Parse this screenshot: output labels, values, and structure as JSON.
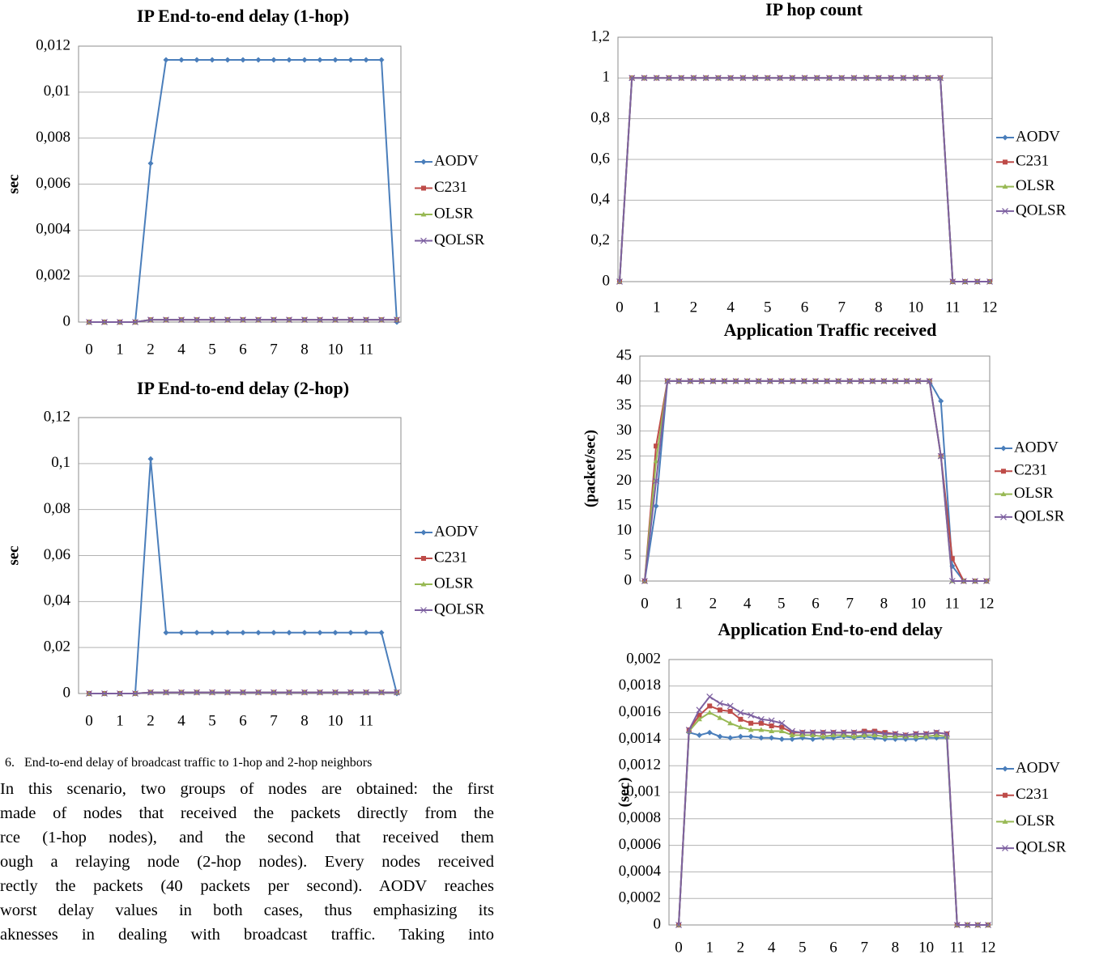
{
  "chart_data": [
    {
      "type": "line",
      "title": "IP End-to-end delay (1-hop)",
      "ylabel": "sec",
      "categories": [
        "0",
        null,
        "1",
        null,
        "2",
        null,
        "4",
        null,
        "5",
        null,
        "6",
        null,
        "7",
        null,
        "8",
        null,
        "10",
        null,
        "11",
        null,
        null
      ],
      "ylim": [
        0,
        0.012
      ],
      "yticks": [
        0,
        {
          "value": 0.002,
          "label": "0,002"
        },
        {
          "value": 0.004,
          "label": "0,004"
        },
        {
          "value": 0.006,
          "label": "0,006"
        },
        {
          "value": 0.008,
          "label": "0,008"
        },
        {
          "value": 0.01,
          "label": "0,01"
        },
        {
          "value": 0.012,
          "label": "0,012"
        }
      ],
      "grid": true,
      "legend": "right",
      "series": [
        {
          "name": "AODV",
          "color": "#4a7ebb",
          "values": [
            0,
            0,
            0,
            0,
            0.0069,
            0.0114,
            0.0114,
            0.0114,
            0.0114,
            0.0114,
            0.0114,
            0.0114,
            0.0114,
            0.0114,
            0.0114,
            0.0114,
            0.0114,
            0.0114,
            0.0114,
            0.0114,
            0
          ]
        },
        {
          "name": "C231",
          "color": "#be4b48",
          "values": [
            0,
            0,
            0,
            0,
            0.0001,
            0.0001,
            0.0001,
            0.0001,
            0.0001,
            0.0001,
            0.0001,
            0.0001,
            0.0001,
            0.0001,
            0.0001,
            0.0001,
            0.0001,
            0.0001,
            0.0001,
            0.0001,
            0.0001
          ]
        },
        {
          "name": "OLSR",
          "color": "#98b954",
          "values": [
            0,
            0,
            0,
            0,
            0.0001,
            0.0001,
            0.0001,
            0.0001,
            0.0001,
            0.0001,
            0.0001,
            0.0001,
            0.0001,
            0.0001,
            0.0001,
            0.0001,
            0.0001,
            0.0001,
            0.0001,
            0.0001,
            0.0001
          ]
        },
        {
          "name": "QOLSR",
          "color": "#7d60a0",
          "values": [
            0,
            0,
            0,
            0,
            0.0001,
            0.0001,
            0.0001,
            0.0001,
            0.0001,
            0.0001,
            0.0001,
            0.0001,
            0.0001,
            0.0001,
            0.0001,
            0.0001,
            0.0001,
            0.0001,
            0.0001,
            0.0001,
            0.0001
          ]
        }
      ]
    },
    {
      "type": "line",
      "title": "IP End-to-end delay (2-hop)",
      "ylabel": "sec",
      "categories": [
        "0",
        null,
        "1",
        null,
        "2",
        null,
        "4",
        null,
        "5",
        null,
        "6",
        null,
        "7",
        null,
        "8",
        null,
        "10",
        null,
        "11",
        null,
        null
      ],
      "ylim": [
        0,
        0.12
      ],
      "yticks": [
        0,
        {
          "value": 0.02,
          "label": "0,02"
        },
        {
          "value": 0.04,
          "label": "0,04"
        },
        {
          "value": 0.06,
          "label": "0,06"
        },
        {
          "value": 0.08,
          "label": "0,08"
        },
        {
          "value": 0.1,
          "label": "0,1"
        },
        {
          "value": 0.12,
          "label": "0,12"
        }
      ],
      "grid": true,
      "legend": "right",
      "series": [
        {
          "name": "AODV",
          "color": "#4a7ebb",
          "values": [
            0,
            0,
            0,
            0,
            0.102,
            0.0265,
            0.0265,
            0.0265,
            0.0265,
            0.0265,
            0.0265,
            0.0265,
            0.0265,
            0.0265,
            0.0265,
            0.0265,
            0.0265,
            0.0265,
            0.0265,
            0.0265,
            0
          ]
        },
        {
          "name": "C231",
          "color": "#be4b48",
          "values": [
            0,
            0,
            0,
            0,
            0.0005,
            0.0005,
            0.0005,
            0.0005,
            0.0005,
            0.0005,
            0.0005,
            0.0005,
            0.0005,
            0.0005,
            0.0005,
            0.0005,
            0.0005,
            0.0005,
            0.0005,
            0.0005,
            0.0005
          ]
        },
        {
          "name": "OLSR",
          "color": "#98b954",
          "values": [
            0,
            0,
            0,
            0,
            0.0005,
            0.0005,
            0.0005,
            0.0005,
            0.0005,
            0.0005,
            0.0005,
            0.0005,
            0.0005,
            0.0005,
            0.0005,
            0.0005,
            0.0005,
            0.0005,
            0.0005,
            0.0005,
            0.0005
          ]
        },
        {
          "name": "QOLSR",
          "color": "#7d60a0",
          "values": [
            0,
            0,
            0,
            0,
            0.0005,
            0.0005,
            0.0005,
            0.0005,
            0.0005,
            0.0005,
            0.0005,
            0.0005,
            0.0005,
            0.0005,
            0.0005,
            0.0005,
            0.0005,
            0.0005,
            0.0005,
            0.0005,
            0.0005
          ]
        }
      ]
    },
    {
      "type": "line",
      "title": "IP hop count",
      "categories": [
        "0",
        null,
        null,
        "1",
        null,
        null,
        "2",
        null,
        null,
        "4",
        null,
        null,
        "5",
        null,
        null,
        "6",
        null,
        null,
        "7",
        null,
        null,
        "8",
        null,
        null,
        "10",
        null,
        null,
        "11",
        null,
        null,
        "12"
      ],
      "ylim": [
        0,
        1.2
      ],
      "yticks": [
        0,
        {
          "value": 0.2,
          "label": "0,2"
        },
        {
          "value": 0.4,
          "label": "0,4"
        },
        {
          "value": 0.6,
          "label": "0,6"
        },
        {
          "value": 0.8,
          "label": "0,8"
        },
        1,
        {
          "value": 1.2,
          "label": "1,2"
        }
      ],
      "grid": true,
      "legend": "right",
      "series": [
        {
          "name": "AODV",
          "color": "#4a7ebb",
          "values": [
            0,
            1,
            1,
            1,
            1,
            1,
            1,
            1,
            1,
            1,
            1,
            1,
            1,
            1,
            1,
            1,
            1,
            1,
            1,
            1,
            1,
            1,
            1,
            1,
            1,
            1,
            1,
            0,
            0,
            0,
            0
          ]
        },
        {
          "name": "C231",
          "color": "#be4b48",
          "values": [
            0,
            1,
            1,
            1,
            1,
            1,
            1,
            1,
            1,
            1,
            1,
            1,
            1,
            1,
            1,
            1,
            1,
            1,
            1,
            1,
            1,
            1,
            1,
            1,
            1,
            1,
            1,
            0,
            0,
            0,
            0
          ]
        },
        {
          "name": "OLSR",
          "color": "#98b954",
          "values": [
            0,
            1,
            1,
            1,
            1,
            1,
            1,
            1,
            1,
            1,
            1,
            1,
            1,
            1,
            1,
            1,
            1,
            1,
            1,
            1,
            1,
            1,
            1,
            1,
            1,
            1,
            1,
            0,
            0,
            0,
            0
          ]
        },
        {
          "name": "QOLSR",
          "color": "#7d60a0",
          "values": [
            0,
            1,
            1,
            1,
            1,
            1,
            1,
            1,
            1,
            1,
            1,
            1,
            1,
            1,
            1,
            1,
            1,
            1,
            1,
            1,
            1,
            1,
            1,
            1,
            1,
            1,
            1,
            0,
            0,
            0,
            0
          ]
        }
      ]
    },
    {
      "type": "line",
      "title": "Application Traffic received",
      "ylabel": "(packet/sec)",
      "categories": [
        "0",
        null,
        null,
        "1",
        null,
        null,
        "2",
        null,
        null,
        "4",
        null,
        null,
        "5",
        null,
        null,
        "6",
        null,
        null,
        "7",
        null,
        null,
        "8",
        null,
        null,
        "10",
        null,
        null,
        "11",
        null,
        null,
        "12"
      ],
      "ylim": [
        0,
        45
      ],
      "yticks": [
        0,
        5,
        10,
        15,
        20,
        25,
        30,
        35,
        40,
        45
      ],
      "grid": true,
      "legend": "right",
      "series": [
        {
          "name": "AODV",
          "color": "#4a7ebb",
          "values": [
            0,
            15,
            40,
            40,
            40,
            40,
            40,
            40,
            40,
            40,
            40,
            40,
            40,
            40,
            40,
            40,
            40,
            40,
            40,
            40,
            40,
            40,
            40,
            40,
            40,
            40,
            36,
            3,
            0,
            0,
            0
          ]
        },
        {
          "name": "C231",
          "color": "#be4b48",
          "values": [
            0,
            27,
            40,
            40,
            40,
            40,
            40,
            40,
            40,
            40,
            40,
            40,
            40,
            40,
            40,
            40,
            40,
            40,
            40,
            40,
            40,
            40,
            40,
            40,
            40,
            40,
            25,
            4.5,
            0,
            0,
            0
          ]
        },
        {
          "name": "OLSR",
          "color": "#98b954",
          "values": [
            0,
            24,
            40,
            40,
            40,
            40,
            40,
            40,
            40,
            40,
            40,
            40,
            40,
            40,
            40,
            40,
            40,
            40,
            40,
            40,
            40,
            40,
            40,
            40,
            40,
            40,
            25,
            0,
            0,
            0,
            0
          ]
        },
        {
          "name": "QOLSR",
          "color": "#7d60a0",
          "values": [
            0,
            20,
            40,
            40,
            40,
            40,
            40,
            40,
            40,
            40,
            40,
            40,
            40,
            40,
            40,
            40,
            40,
            40,
            40,
            40,
            40,
            40,
            40,
            40,
            40,
            40,
            25,
            0,
            0,
            0,
            0
          ]
        }
      ]
    },
    {
      "type": "line",
      "title": "Application End-to-end delay",
      "ylabel": "(sec)",
      "categories": [
        "0",
        null,
        null,
        "1",
        null,
        null,
        "2",
        null,
        null,
        "4",
        null,
        null,
        "5",
        null,
        null,
        "6",
        null,
        null,
        "7",
        null,
        null,
        "8",
        null,
        null,
        "10",
        null,
        null,
        "11",
        null,
        null,
        "12"
      ],
      "ylim": [
        0,
        0.002
      ],
      "yticks": [
        0,
        {
          "value": 0.0002,
          "label": "0,0002"
        },
        {
          "value": 0.0004,
          "label": "0,0004"
        },
        {
          "value": 0.0006,
          "label": "0,0006"
        },
        {
          "value": 0.0008,
          "label": "0,0008"
        },
        {
          "value": 0.001,
          "label": "0,001"
        },
        {
          "value": 0.0012,
          "label": "0,0012"
        },
        {
          "value": 0.0014,
          "label": "0,0014"
        },
        {
          "value": 0.0016,
          "label": "0,0016"
        },
        {
          "value": 0.0018,
          "label": "0,0018"
        },
        {
          "value": 0.002,
          "label": "0,002"
        }
      ],
      "grid": true,
      "legend": "right",
      "series": [
        {
          "name": "AODV",
          "color": "#4a7ebb",
          "values": [
            0,
            0.00145,
            0.00143,
            0.00145,
            0.00142,
            0.00141,
            0.00142,
            0.00142,
            0.00141,
            0.00141,
            0.0014,
            0.0014,
            0.00141,
            0.0014,
            0.00141,
            0.00141,
            0.00142,
            0.00141,
            0.00142,
            0.00141,
            0.0014,
            0.0014,
            0.0014,
            0.0014,
            0.00141,
            0.00141,
            0.00141,
            0,
            0,
            0,
            0
          ]
        },
        {
          "name": "C231",
          "color": "#be4b48",
          "values": [
            0,
            0.00147,
            0.00158,
            0.00165,
            0.00162,
            0.00161,
            0.00155,
            0.00152,
            0.00152,
            0.0015,
            0.00149,
            0.00145,
            0.00145,
            0.00145,
            0.00145,
            0.00145,
            0.00145,
            0.00145,
            0.00146,
            0.00146,
            0.00145,
            0.00144,
            0.00143,
            0.00144,
            0.00144,
            0.00145,
            0.00144,
            0,
            0,
            0,
            0
          ]
        },
        {
          "name": "OLSR",
          "color": "#98b954",
          "values": [
            0,
            0.00146,
            0.00155,
            0.0016,
            0.00156,
            0.00152,
            0.00149,
            0.00147,
            0.00147,
            0.00146,
            0.00146,
            0.00143,
            0.00143,
            0.00143,
            0.00142,
            0.00143,
            0.00143,
            0.00142,
            0.00143,
            0.00143,
            0.00142,
            0.00142,
            0.00142,
            0.00142,
            0.00142,
            0.00143,
            0.00142,
            0,
            0,
            0,
            0
          ]
        },
        {
          "name": "QOLSR",
          "color": "#7d60a0",
          "values": [
            0,
            0.00147,
            0.00162,
            0.00172,
            0.00167,
            0.00165,
            0.0016,
            0.00158,
            0.00155,
            0.00154,
            0.00152,
            0.00146,
            0.00145,
            0.00145,
            0.00145,
            0.00145,
            0.00145,
            0.00145,
            0.00145,
            0.00145,
            0.00144,
            0.00144,
            0.00143,
            0.00144,
            0.00144,
            0.00145,
            0.00144,
            0,
            0,
            0,
            0
          ]
        }
      ]
    }
  ],
  "caption": "6.   End-to-end delay of broadcast traffic to 1-hop and 2-hop neighbors",
  "paragraph": [
    "In this scenario, two groups of nodes are obtained: the first",
    "made of nodes that received the packets directly from the",
    "rce (1-hop nodes), and the second that received them",
    "ough a relaying node (2-hop nodes). Every nodes received",
    "rectly the packets (40 packets per second). AODV reaches",
    "worst delay values in both cases, thus emphasizing its",
    "aknesses in dealing with broadcast traffic. Taking into"
  ]
}
